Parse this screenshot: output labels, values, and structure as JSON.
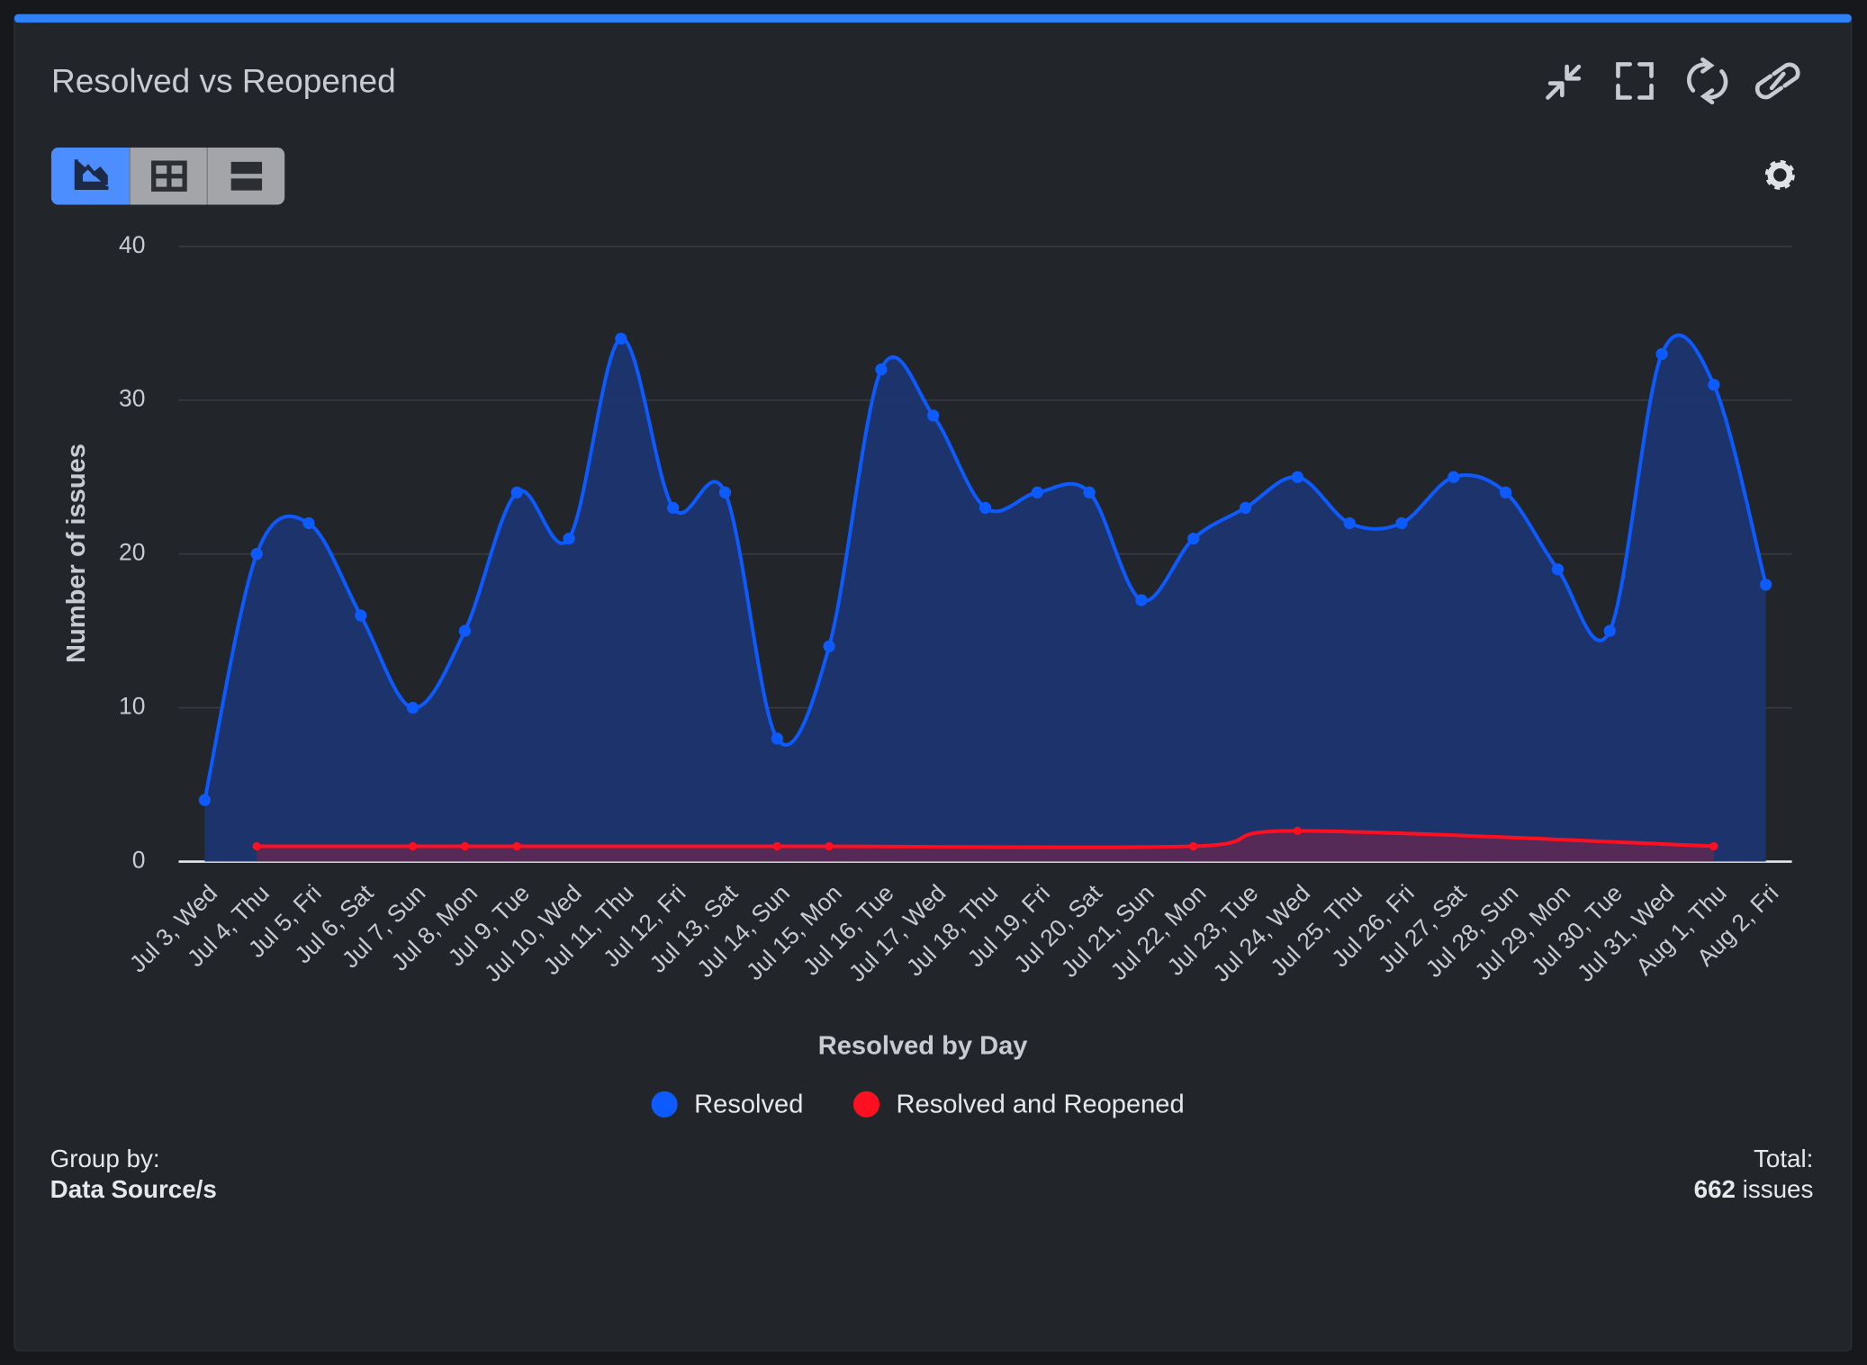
{
  "header": {
    "title": "Resolved vs Reopened"
  },
  "chart_data": {
    "type": "area",
    "categories": [
      "Jul 3, Wed",
      "Jul 4, Thu",
      "Jul 5, Fri",
      "Jul 6, Sat",
      "Jul 7, Sun",
      "Jul 8, Mon",
      "Jul 9, Tue",
      "Jul 10, Wed",
      "Jul 11, Thu",
      "Jul 12, Fri",
      "Jul 13, Sat",
      "Jul 14, Sun",
      "Jul 15, Mon",
      "Jul 16, Tue",
      "Jul 17, Wed",
      "Jul 18, Thu",
      "Jul 19, Fri",
      "Jul 20, Sat",
      "Jul 21, Sun",
      "Jul 22, Mon",
      "Jul 23, Tue",
      "Jul 24, Wed",
      "Jul 25, Thu",
      "Jul 26, Fri",
      "Jul 27, Sat",
      "Jul 28, Sun",
      "Jul 29, Mon",
      "Jul 30, Tue",
      "Jul 31, Wed",
      "Aug 1, Thu",
      "Aug 2, Fri"
    ],
    "series": [
      {
        "name": "Resolved",
        "color": "#0d5bff",
        "fill": "#1c3470",
        "values": [
          4,
          20,
          22,
          16,
          10,
          15,
          24,
          21,
          34,
          23,
          24,
          8,
          14,
          32,
          29,
          23,
          24,
          24,
          17,
          21,
          23,
          25,
          22,
          22,
          25,
          24,
          19,
          15,
          33,
          31,
          18
        ]
      },
      {
        "name": "Resolved and Reopened",
        "color": "#ff1020",
        "fill": "#5a2a55",
        "x": [
          "Jul 4, Thu",
          "Jul 7, Sun",
          "Jul 8, Mon",
          "Jul 9, Tue",
          "Jul 14, Sun",
          "Jul 15, Mon",
          "Jul 22, Mon",
          "Jul 24, Wed",
          "Aug 1, Thu"
        ],
        "values": [
          1,
          1,
          1,
          1,
          1,
          1,
          1,
          2,
          1
        ]
      }
    ],
    "x_label": "Resolved by Day",
    "y_label": "Number of issues",
    "ylim": [
      0,
      40
    ],
    "yticks": [
      0,
      10,
      20,
      30,
      40
    ],
    "grid": true
  },
  "footer": {
    "group_by_label": "Group by:",
    "group_by_value": "Data Source/s",
    "total_label": "Total:",
    "total_count": 662,
    "total_unit": "issues"
  }
}
